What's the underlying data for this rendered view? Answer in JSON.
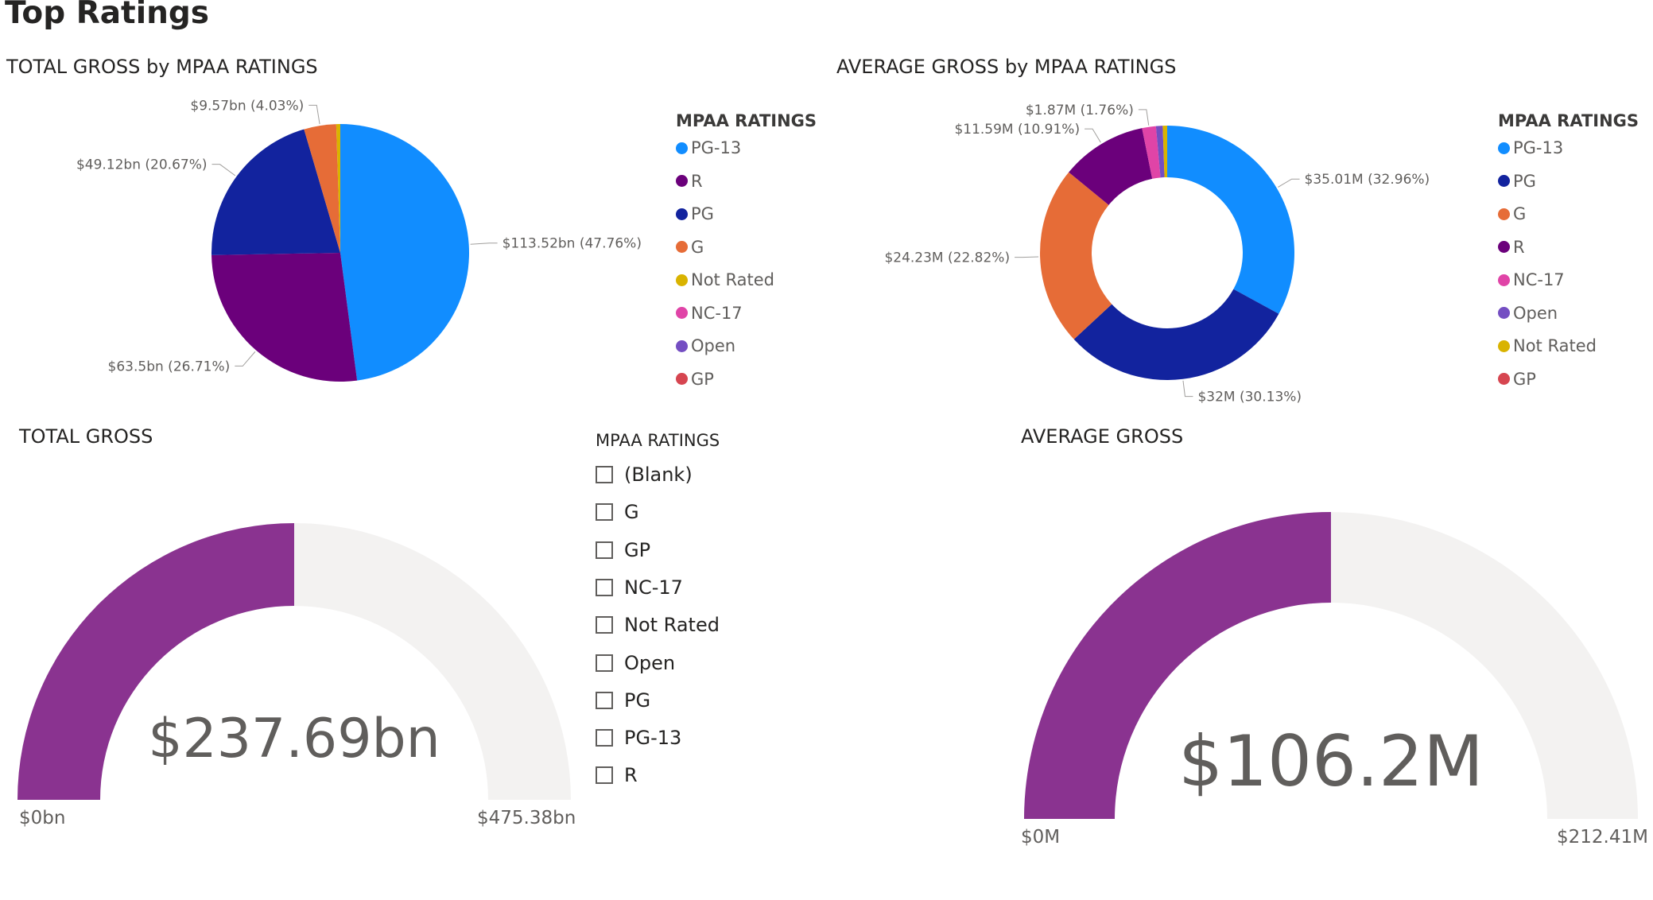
{
  "page": {
    "title": "Top Ratings"
  },
  "colors": {
    "PG-13": "#118dff",
    "R": "#6b007b",
    "PG": "#12239e",
    "G": "#e66c37",
    "Not Rated": "#d9b300",
    "NC-17": "#e044a7",
    "Open": "#744ec2",
    "GP": "#d64550",
    "gauge_fill": "#8a3390",
    "gauge_track": "#f3f2f1"
  },
  "pie_total": {
    "title": "TOTAL GROSS by MPAA RATINGS",
    "legend_title": "MPAA RATINGS",
    "legend": [
      "PG-13",
      "R",
      "PG",
      "G",
      "Not Rated",
      "NC-17",
      "Open",
      "GP"
    ]
  },
  "donut_average": {
    "title": "AVERAGE GROSS by MPAA RATINGS",
    "legend_title": "MPAA RATINGS",
    "legend": [
      "PG-13",
      "PG",
      "G",
      "R",
      "NC-17",
      "Open",
      "Not Rated",
      "GP"
    ]
  },
  "gauge_total": {
    "title": "TOTAL GROSS",
    "value_label": "$237.69bn",
    "min_label": "$0bn",
    "max_label": "$475.38bn"
  },
  "gauge_average": {
    "title": "AVERAGE GROSS",
    "value_label": "$106.2M",
    "min_label": "$0M",
    "max_label": "$212.41M"
  },
  "slicer": {
    "title": "MPAA RATINGS",
    "items": [
      "(Blank)",
      "G",
      "GP",
      "NC-17",
      "Not Rated",
      "Open",
      "PG",
      "PG-13",
      "R"
    ]
  },
  "chart_data": [
    {
      "type": "pie",
      "title": "TOTAL GROSS by MPAA RATINGS",
      "unit": "$bn",
      "categories": [
        "PG-13",
        "R",
        "PG",
        "G",
        "Not Rated"
      ],
      "values": [
        113.52,
        63.5,
        49.12,
        9.57,
        1.2
      ],
      "percents": [
        47.76,
        26.71,
        20.67,
        4.03,
        0.5
      ],
      "data_labels": [
        "$113.52bn (47.76%)",
        "$63.5bn (26.71%)",
        "$49.12bn (20.67%)",
        "$9.57bn (4.03%)",
        ""
      ],
      "legend_position": "right"
    },
    {
      "type": "pie",
      "subtype": "donut",
      "title": "AVERAGE GROSS by MPAA RATINGS",
      "unit": "$M",
      "categories": [
        "PG-13",
        "PG",
        "G",
        "R",
        "NC-17",
        "Open",
        "Not Rated"
      ],
      "values": [
        35.01,
        32.0,
        24.23,
        11.59,
        1.87,
        0.9,
        0.6
      ],
      "percents": [
        32.96,
        30.13,
        22.82,
        10.91,
        1.76,
        0.85,
        0.57
      ],
      "data_labels": [
        "$35.01M (32.96%)",
        "$32M (30.13%)",
        "$24.23M (22.82%)",
        "$11.59M (10.91%)",
        "$1.87M (1.76%)",
        "",
        ""
      ],
      "legend_position": "right"
    },
    {
      "type": "gauge",
      "title": "TOTAL GROSS",
      "value": 237.69,
      "min": 0,
      "max": 475.38,
      "unit": "$bn"
    },
    {
      "type": "gauge",
      "title": "AVERAGE GROSS",
      "value": 106.2,
      "min": 0,
      "max": 212.41,
      "unit": "$M"
    }
  ]
}
